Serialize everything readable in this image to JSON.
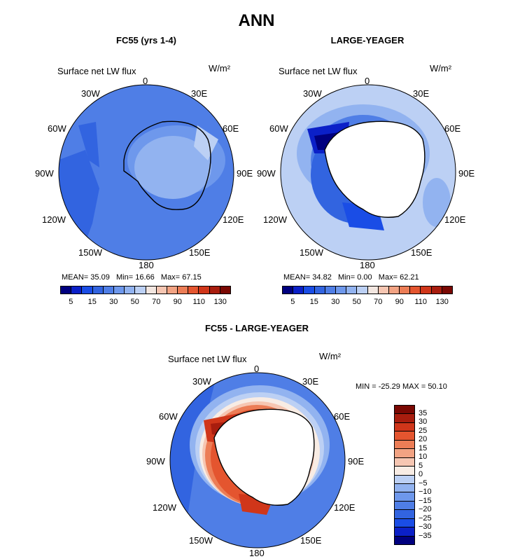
{
  "title": "ANN",
  "panels": [
    {
      "title": "FC55 (yrs 1-4)",
      "variable": "Surface net LW flux",
      "units": "W/m²",
      "stats": {
        "mean_label": "MEAN=",
        "mean": "35.09",
        "min_label": "Min=",
        "min": "16.66",
        "max_label": "Max=",
        "max": "67.15"
      },
      "colorbar_ticks": [
        "5",
        "15",
        "30",
        "50",
        "70",
        "90",
        "110",
        "130"
      ]
    },
    {
      "title": "LARGE-YEAGER",
      "variable": "Surface net LW flux",
      "units": "W/m²",
      "stats": {
        "mean_label": "MEAN=",
        "mean": "34.82",
        "min_label": "Min=",
        "min": "0.00",
        "max_label": "Max=",
        "max": "62.21"
      },
      "colorbar_ticks": [
        "5",
        "15",
        "30",
        "50",
        "70",
        "90",
        "110",
        "130"
      ]
    }
  ],
  "diff_panel": {
    "title": "FC55 - LARGE-YEAGER",
    "variable": "Surface net LW flux",
    "units": "W/m²",
    "minmax": "MIN = -25.29 MAX =  50.10",
    "colorbar_ticks": [
      "35",
      "30",
      "25",
      "20",
      "15",
      "10",
      "5",
      "0",
      "−5",
      "−10",
      "−15",
      "−20",
      "−25",
      "−30",
      "−35"
    ]
  },
  "longitude_labels": {
    "0": "0",
    "30E": "30E",
    "60E": "60E",
    "90E": "90E",
    "120E": "120E",
    "150E": "150E",
    "180": "180",
    "150W": "150W",
    "120W": "120W",
    "90W": "90W",
    "60W": "60W",
    "30W": "30W"
  },
  "colors": {
    "seq_scale": [
      "#00007f",
      "#0b20c8",
      "#1a4de6",
      "#3264e0",
      "#4f7ee6",
      "#6e98ec",
      "#92b3f0",
      "#bcd0f4",
      "#f2e6e0",
      "#f6c6b2",
      "#f2a383",
      "#ec7d56",
      "#e4552f",
      "#d0361a",
      "#a81d0e",
      "#7a0803"
    ],
    "div_scale": [
      "#7a0803",
      "#a81d0e",
      "#d0361a",
      "#e4552f",
      "#ec7d56",
      "#f2a383",
      "#f6c6b2",
      "#f8ece4",
      "#bcd0f4",
      "#92b3f0",
      "#6e98ec",
      "#4f7ee6",
      "#3264e0",
      "#1a4de6",
      "#0b20c8",
      "#00007f"
    ]
  }
}
